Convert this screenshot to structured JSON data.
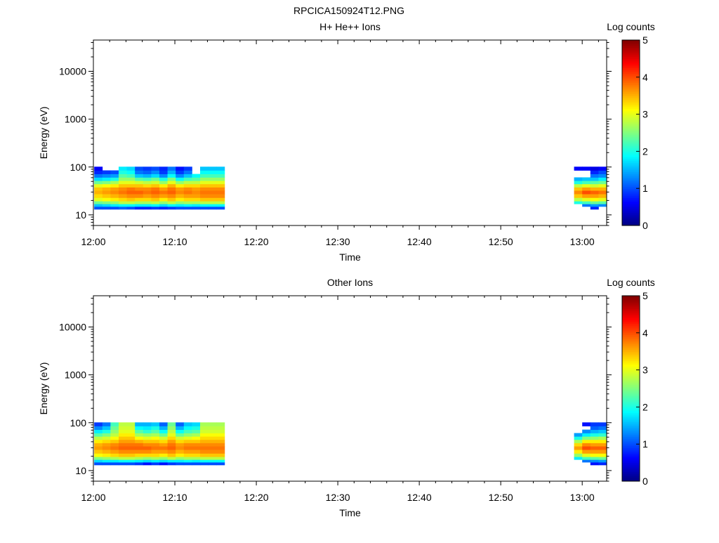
{
  "figure_title": "RPCICA150924T12.PNG",
  "chart_data": [
    {
      "type": "heatmap",
      "title": "H+ He++ Ions",
      "xlabel": "Time",
      "ylabel": "Energy (eV)",
      "x_scale": "time",
      "y_scale": "log",
      "xlim": [
        "12:00",
        "13:03"
      ],
      "ylim": [
        6,
        45000
      ],
      "x_ticks": [
        "12:00",
        "12:10",
        "12:20",
        "12:30",
        "12:40",
        "12:50",
        "13:00"
      ],
      "y_ticks": [
        10,
        100,
        1000,
        10000
      ],
      "y_tick_labels": [
        "10",
        "100",
        "1000",
        "10000"
      ],
      "colorbar": {
        "label": "Log counts",
        "range": [
          0,
          5
        ],
        "ticks": [
          "0",
          "1",
          "2",
          "3",
          "4",
          "5"
        ],
        "colormap": "jet"
      },
      "energy_bins": [
        14,
        16,
        18,
        21,
        25,
        30,
        35,
        41,
        48,
        56,
        66,
        78,
        93
      ],
      "time_columns": [
        {
          "time": "12:00.1",
          "values": [
            1.0,
            1.6,
            2.4,
            3.0,
            3.3,
            3.5,
            3.4,
            3.0,
            2.4,
            1.7,
            1.2,
            0.8,
            0.6
          ]
        },
        {
          "time": "12:01.1",
          "values": [
            1.0,
            1.7,
            2.5,
            3.1,
            3.4,
            3.6,
            3.5,
            3.1,
            2.5,
            1.8,
            1.3,
            0.9,
            null
          ]
        },
        {
          "time": "12:02.1",
          "values": [
            1.0,
            1.8,
            2.6,
            3.2,
            3.5,
            3.7,
            3.6,
            3.2,
            2.7,
            2.0,
            1.4,
            1.0,
            null
          ]
        },
        {
          "time": "12:03.1",
          "values": [
            1.1,
            1.9,
            2.8,
            3.3,
            3.6,
            3.8,
            3.7,
            3.4,
            3.0,
            2.6,
            2.3,
            2.0,
            1.8
          ]
        },
        {
          "time": "12:04.1",
          "values": [
            1.0,
            1.9,
            2.8,
            3.4,
            3.7,
            3.9,
            3.8,
            3.4,
            3.0,
            2.6,
            2.2,
            1.9,
            1.7
          ]
        },
        {
          "time": "12:05.1",
          "values": [
            0.8,
            1.8,
            2.7,
            3.3,
            3.7,
            3.9,
            3.7,
            3.4,
            2.9,
            2.3,
            1.6,
            1.2,
            1.0
          ]
        },
        {
          "time": "12:06.1",
          "values": [
            0.8,
            1.8,
            2.7,
            3.3,
            3.6,
            3.8,
            3.7,
            3.3,
            2.8,
            2.2,
            1.5,
            1.1,
            0.9
          ]
        },
        {
          "time": "12:07.1",
          "values": [
            0.9,
            1.9,
            2.8,
            3.4,
            3.7,
            3.9,
            3.8,
            3.4,
            2.9,
            2.4,
            1.7,
            1.3,
            1.0
          ]
        },
        {
          "time": "12:08.1",
          "values": [
            0.8,
            1.7,
            2.6,
            3.2,
            3.6,
            3.8,
            3.6,
            3.2,
            2.6,
            2.0,
            1.3,
            0.9,
            0.8
          ]
        },
        {
          "time": "12:09.1",
          "values": [
            0.9,
            1.9,
            2.8,
            3.4,
            3.7,
            3.9,
            3.8,
            3.5,
            3.0,
            2.5,
            1.9,
            1.5,
            1.2
          ]
        },
        {
          "time": "12:10.1",
          "values": [
            1.0,
            1.8,
            2.6,
            3.2,
            3.5,
            3.7,
            3.6,
            3.2,
            2.6,
            1.9,
            1.3,
            0.9,
            0.7
          ]
        },
        {
          "time": "12:11.1",
          "values": [
            1.0,
            1.9,
            2.7,
            3.3,
            3.6,
            3.8,
            3.7,
            3.3,
            2.8,
            2.2,
            1.6,
            1.2,
            0.9
          ]
        },
        {
          "time": "12:12.1",
          "values": [
            1.0,
            1.8,
            2.7,
            3.3,
            3.6,
            3.7,
            3.6,
            3.3,
            2.8,
            2.3,
            1.9,
            null,
            null
          ]
        },
        {
          "time": "12:13.1",
          "values": [
            1.0,
            1.9,
            2.8,
            3.4,
            3.7,
            3.8,
            3.7,
            3.4,
            3.0,
            2.6,
            2.2,
            1.9,
            1.6
          ]
        },
        {
          "time": "12:14.1",
          "values": [
            1.0,
            1.9,
            2.8,
            3.4,
            3.7,
            3.8,
            3.7,
            3.4,
            3.0,
            2.6,
            2.2,
            1.9,
            1.6
          ]
        },
        {
          "time": "12:15.1",
          "values": [
            1.0,
            1.9,
            2.8,
            3.4,
            3.7,
            3.8,
            3.7,
            3.4,
            3.0,
            2.6,
            2.2,
            1.9,
            1.6
          ]
        },
        {
          "time": "12:59.0",
          "values": [
            null,
            null,
            2.0,
            2.8,
            3.4,
            3.7,
            3.4,
            2.8,
            2.0,
            1.5,
            null,
            null,
            0.6
          ]
        },
        {
          "time": "13:00.0",
          "values": [
            null,
            1.2,
            2.2,
            3.0,
            3.6,
            4.0,
            3.6,
            3.0,
            2.2,
            1.6,
            null,
            null,
            0.6
          ]
        },
        {
          "time": "13:01.0",
          "values": [
            0.8,
            1.4,
            2.4,
            3.1,
            3.6,
            3.9,
            3.5,
            2.9,
            2.3,
            1.6,
            1.2,
            0.8,
            0.5
          ]
        },
        {
          "time": "13:02.0",
          "values": [
            null,
            1.3,
            2.3,
            3.0,
            3.5,
            3.8,
            3.5,
            3.0,
            2.4,
            1.8,
            1.3,
            1.0,
            0.6
          ]
        }
      ]
    },
    {
      "type": "heatmap",
      "title": "Other Ions",
      "xlabel": "Time",
      "ylabel": "Energy (eV)",
      "x_scale": "time",
      "y_scale": "log",
      "xlim": [
        "12:00",
        "13:03"
      ],
      "ylim": [
        6,
        45000
      ],
      "x_ticks": [
        "12:00",
        "12:10",
        "12:20",
        "12:30",
        "12:40",
        "12:50",
        "13:00"
      ],
      "y_ticks": [
        10,
        100,
        1000,
        10000
      ],
      "y_tick_labels": [
        "10",
        "100",
        "1000",
        "10000"
      ],
      "colorbar": {
        "label": "Log counts",
        "range": [
          0,
          5
        ],
        "ticks": [
          "0",
          "1",
          "2",
          "3",
          "4",
          "5"
        ],
        "colormap": "jet"
      },
      "energy_bins": [
        14,
        16,
        18,
        21,
        25,
        30,
        35,
        41,
        48,
        56,
        66,
        78,
        93
      ],
      "time_columns": [
        {
          "time": "12:00.1",
          "values": [
            1.0,
            1.7,
            2.5,
            3.1,
            3.4,
            3.6,
            3.5,
            3.2,
            2.8,
            2.3,
            1.8,
            1.3,
            0.9
          ]
        },
        {
          "time": "12:01.1",
          "values": [
            1.0,
            1.8,
            2.6,
            3.2,
            3.5,
            3.7,
            3.6,
            3.3,
            2.9,
            2.5,
            2.0,
            1.6,
            1.2
          ]
        },
        {
          "time": "12:02.1",
          "values": [
            1.0,
            1.8,
            2.7,
            3.3,
            3.6,
            3.8,
            3.7,
            3.4,
            3.1,
            2.8,
            2.6,
            2.4,
            2.2
          ]
        },
        {
          "time": "12:03.1",
          "values": [
            1.0,
            1.9,
            2.8,
            3.4,
            3.7,
            3.9,
            3.8,
            3.6,
            3.4,
            3.2,
            3.0,
            2.9,
            2.8
          ]
        },
        {
          "time": "12:04.1",
          "values": [
            1.0,
            1.9,
            2.8,
            3.4,
            3.7,
            3.9,
            3.8,
            3.6,
            3.4,
            3.2,
            3.0,
            2.9,
            2.8
          ]
        },
        {
          "time": "12:05.1",
          "values": [
            0.9,
            1.8,
            2.7,
            3.3,
            3.7,
            3.9,
            3.8,
            3.5,
            3.1,
            2.7,
            2.3,
            1.9,
            1.5
          ]
        },
        {
          "time": "12:06.1",
          "values": [
            0.7,
            1.7,
            2.6,
            3.3,
            3.7,
            3.9,
            3.7,
            3.4,
            3.0,
            2.6,
            2.1,
            1.8,
            1.5
          ]
        },
        {
          "time": "12:07.1",
          "values": [
            0.9,
            1.8,
            2.7,
            3.3,
            3.6,
            3.8,
            3.7,
            3.4,
            3.1,
            2.7,
            2.3,
            2.0,
            1.6
          ]
        },
        {
          "time": "12:08.1",
          "values": [
            0.7,
            1.7,
            2.6,
            3.2,
            3.6,
            3.8,
            3.6,
            3.3,
            2.9,
            2.4,
            1.9,
            1.5,
            1.1
          ]
        },
        {
          "time": "12:09.1",
          "values": [
            0.9,
            1.8,
            2.8,
            3.4,
            3.7,
            3.9,
            3.8,
            3.6,
            3.3,
            3.0,
            2.8,
            2.6,
            2.4
          ]
        },
        {
          "time": "12:10.1",
          "values": [
            1.0,
            1.8,
            2.6,
            3.2,
            3.5,
            3.7,
            3.6,
            3.3,
            2.9,
            2.4,
            1.9,
            1.5,
            1.1
          ]
        },
        {
          "time": "12:11.1",
          "values": [
            1.0,
            1.9,
            2.7,
            3.3,
            3.6,
            3.8,
            3.7,
            3.4,
            3.0,
            2.6,
            2.2,
            1.9,
            1.6
          ]
        },
        {
          "time": "12:12.1",
          "values": [
            1.0,
            1.8,
            2.7,
            3.3,
            3.6,
            3.8,
            3.7,
            3.4,
            3.1,
            2.7,
            2.3,
            2.0,
            1.7
          ]
        },
        {
          "time": "12:13.1",
          "values": [
            1.0,
            1.9,
            2.8,
            3.4,
            3.7,
            3.8,
            3.7,
            3.5,
            3.3,
            3.1,
            2.9,
            2.8,
            2.7
          ]
        },
        {
          "time": "12:14.1",
          "values": [
            1.0,
            1.9,
            2.8,
            3.4,
            3.7,
            3.8,
            3.7,
            3.5,
            3.3,
            3.1,
            2.9,
            2.8,
            2.7
          ]
        },
        {
          "time": "12:15.1",
          "values": [
            1.0,
            1.9,
            2.8,
            3.4,
            3.7,
            3.8,
            3.7,
            3.5,
            3.3,
            3.1,
            2.9,
            2.8,
            2.7
          ]
        },
        {
          "time": "12:59.0",
          "values": [
            null,
            null,
            1.8,
            2.6,
            3.2,
            3.6,
            3.3,
            2.7,
            2.0,
            1.4,
            null,
            null,
            null
          ]
        },
        {
          "time": "13:00.0",
          "values": [
            null,
            1.2,
            2.2,
            3.0,
            3.6,
            4.0,
            3.7,
            3.2,
            2.5,
            1.8,
            1.3,
            null,
            0.7
          ]
        },
        {
          "time": "13:01.0",
          "values": [
            0.7,
            1.3,
            2.3,
            3.1,
            3.6,
            3.9,
            3.6,
            3.2,
            2.6,
            2.0,
            1.5,
            1.1,
            0.9
          ]
        },
        {
          "time": "13:02.0",
          "values": [
            0.8,
            1.4,
            2.4,
            3.1,
            3.6,
            3.9,
            3.6,
            3.2,
            2.7,
            2.1,
            1.6,
            1.2,
            0.9
          ]
        }
      ]
    }
  ]
}
